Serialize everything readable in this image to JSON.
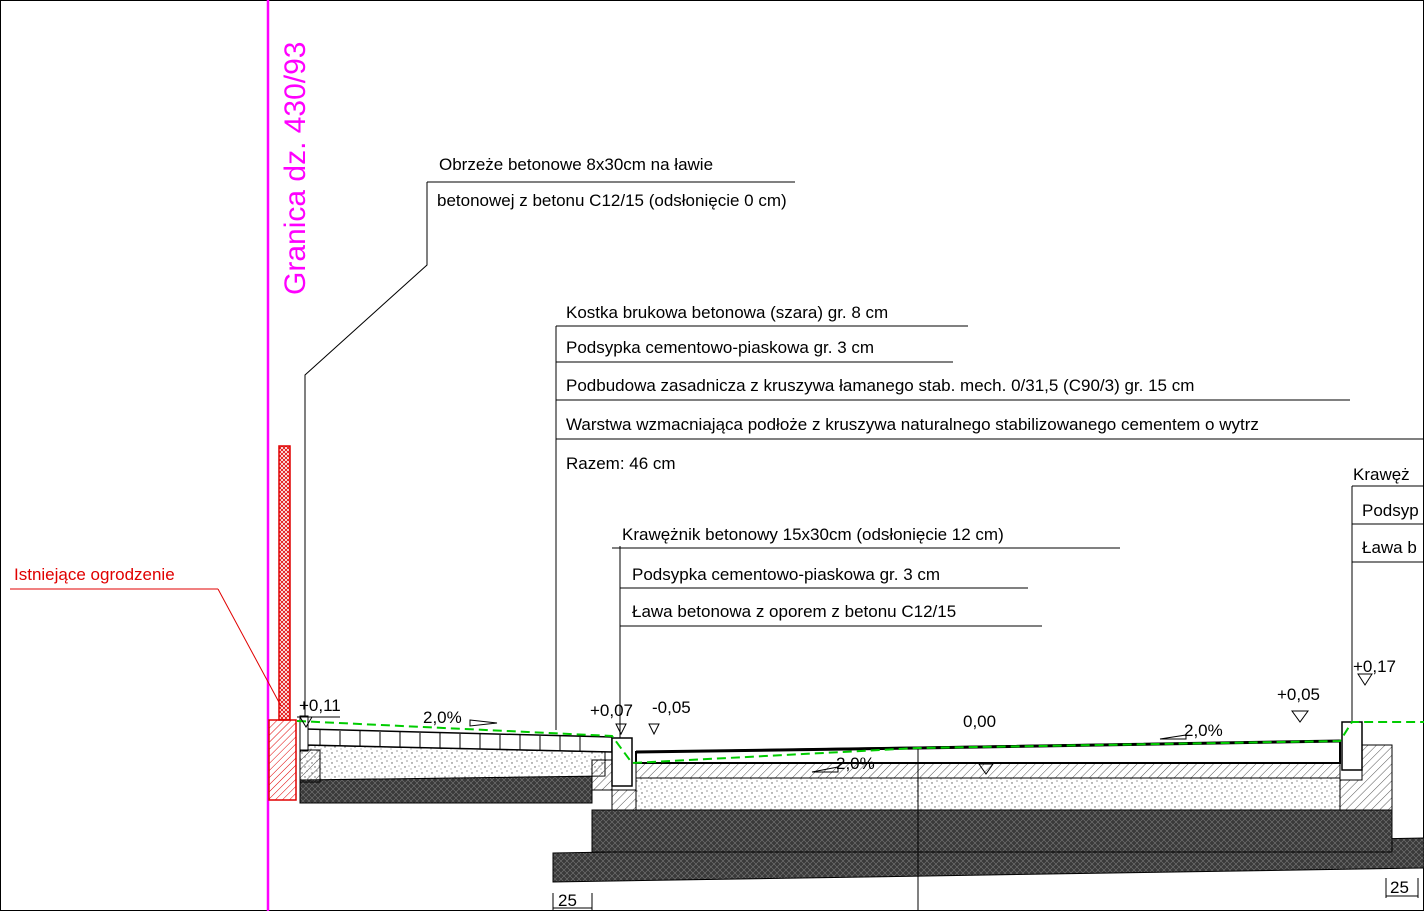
{
  "boundary": {
    "label": "Granica dz. 430/93",
    "color": "#ff00ff"
  },
  "fence": {
    "label": "Istniejące ogrodzenie",
    "color": "#e00000"
  },
  "edging": {
    "line1": "Obrzeże betonowe 8x30cm na ławie",
    "line2": "betonowej z betonu C12/15 (odsłonięcie 0 cm)"
  },
  "pavement_layers": {
    "l1": "Kostka brukowa betonowa (szara) gr. 8 cm",
    "l2": "Podsypka cementowo-piaskowa gr. 3 cm",
    "l3": "Podbudowa zasadnicza z kruszywa łamanego stab. mech. 0/31,5 (C90/3) gr. 15 cm",
    "l4": "Warstwa wzmacniająca podłoże z kruszywa naturalnego stabilizowanego cementem o wytrz",
    "total": "Razem: 46 cm"
  },
  "curb_left": {
    "l1": "Krawężnik betonowy 15x30cm (odsłonięcie 12 cm)",
    "l2": "Podsypka cementowo-piaskowa gr. 3 cm",
    "l3": "Ława betonowa z oporem z betonu C12/15"
  },
  "curb_right": {
    "l1": "Krawęż",
    "l2": "Podsyp",
    "l3": "Ława b"
  },
  "levels": {
    "edge_left": "+0,11",
    "curb_top_left": "+0,07",
    "curb_bottom_left": "-0,05",
    "axis": "0,00",
    "curb_bottom_right": "+0,05",
    "curb_top_right": "+0,17"
  },
  "slopes": {
    "sidewalk": "2,0%",
    "road_left": "2,0%",
    "road_right": "2,0%"
  },
  "dims": {
    "left": "25",
    "right": "25"
  },
  "colors": {
    "grade_line": "#00cc00"
  }
}
